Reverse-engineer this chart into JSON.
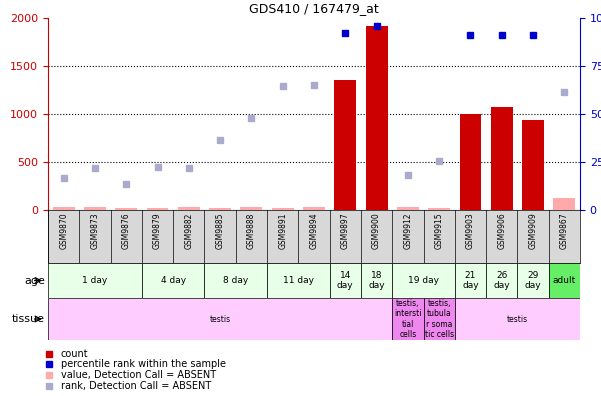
{
  "title": "GDS410 / 167479_at",
  "samples": [
    "GSM9870",
    "GSM9873",
    "GSM9876",
    "GSM9879",
    "GSM9882",
    "GSM9885",
    "GSM9888",
    "GSM9891",
    "GSM9894",
    "GSM9897",
    "GSM9900",
    "GSM9912",
    "GSM9915",
    "GSM9903",
    "GSM9906",
    "GSM9909",
    "GSM9867"
  ],
  "count_values": [
    null,
    null,
    null,
    null,
    null,
    null,
    null,
    null,
    null,
    1350,
    1920,
    null,
    null,
    1000,
    1070,
    940,
    null
  ],
  "count_absent": [
    30,
    30,
    20,
    25,
    30,
    25,
    30,
    25,
    30,
    null,
    null,
    30,
    20,
    null,
    null,
    null,
    120
  ],
  "rank_pct_values": [
    null,
    null,
    null,
    null,
    null,
    null,
    null,
    null,
    null,
    92,
    96,
    null,
    null,
    91,
    91,
    91,
    null
  ],
  "rank_pct_absent": [
    16.5,
    22,
    13.5,
    22.5,
    22,
    36.5,
    48,
    64.5,
    65,
    null,
    null,
    18,
    25.5,
    null,
    null,
    null,
    61.5
  ],
  "ylim_left": [
    0,
    2000
  ],
  "ylim_right": [
    0,
    100
  ],
  "yticks_left": [
    0,
    500,
    1000,
    1500,
    2000
  ],
  "yticks_right": [
    0,
    25,
    50,
    75,
    100
  ],
  "age_groups": [
    {
      "label": "1 day",
      "start": 0,
      "end": 3,
      "color": "#e8ffe8"
    },
    {
      "label": "4 day",
      "start": 3,
      "end": 5,
      "color": "#e8ffe8"
    },
    {
      "label": "8 day",
      "start": 5,
      "end": 7,
      "color": "#e8ffe8"
    },
    {
      "label": "11 day",
      "start": 7,
      "end": 9,
      "color": "#e8ffe8"
    },
    {
      "label": "14\nday",
      "start": 9,
      "end": 10,
      "color": "#e8ffe8"
    },
    {
      "label": "18\nday",
      "start": 10,
      "end": 11,
      "color": "#e8ffe8"
    },
    {
      "label": "19 day",
      "start": 11,
      "end": 13,
      "color": "#e8ffe8"
    },
    {
      "label": "21\nday",
      "start": 13,
      "end": 14,
      "color": "#e8ffe8"
    },
    {
      "label": "26\nday",
      "start": 14,
      "end": 15,
      "color": "#e8ffe8"
    },
    {
      "label": "29\nday",
      "start": 15,
      "end": 16,
      "color": "#e8ffe8"
    },
    {
      "label": "adult",
      "start": 16,
      "end": 17,
      "color": "#66ee66"
    }
  ],
  "tissue_groups": [
    {
      "label": "testis",
      "start": 0,
      "end": 11,
      "color": "#ffccff"
    },
    {
      "label": "testis,\nintersti\ntial\ncells",
      "start": 11,
      "end": 12,
      "color": "#ee88ee"
    },
    {
      "label": "testis,\ntubula\nr soma\ntic cells",
      "start": 12,
      "end": 13,
      "color": "#ee88ee"
    },
    {
      "label": "testis",
      "start": 13,
      "end": 17,
      "color": "#ffccff"
    }
  ],
  "bar_color": "#cc0000",
  "rank_color": "#0000cc",
  "absent_bar_color": "#ffaaaa",
  "absent_rank_color": "#aaaacc",
  "left_axis_color": "#cc0000",
  "right_axis_color": "#0000cc"
}
